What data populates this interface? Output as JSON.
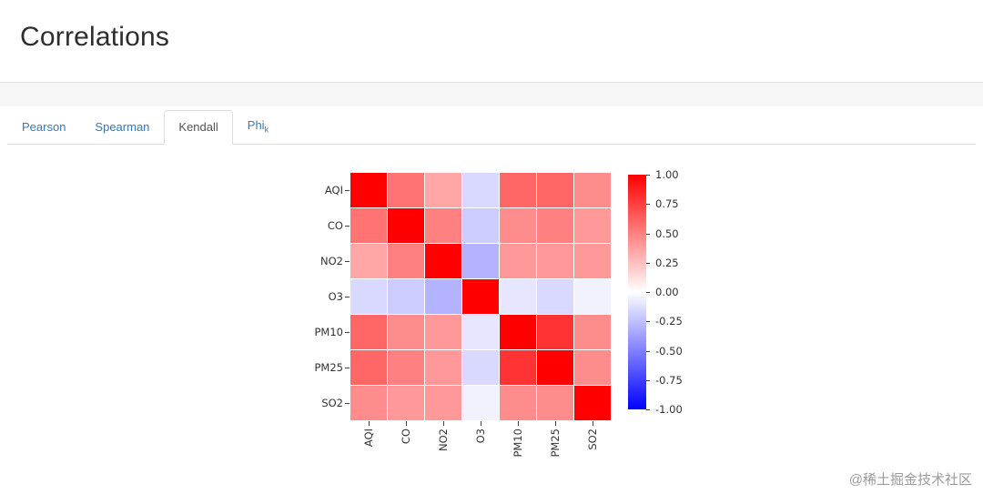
{
  "page": {
    "title": "Correlations",
    "watermark": "@稀土掘金技术社区"
  },
  "tabs": [
    {
      "id": "pearson",
      "label": "Pearson",
      "active": false
    },
    {
      "id": "spearman",
      "label": "Spearman",
      "active": false
    },
    {
      "id": "kendall",
      "label": "Kendall",
      "active": true
    },
    {
      "id": "phik",
      "label": "Phi",
      "sub": "k",
      "active": false
    }
  ],
  "chart_data": {
    "type": "heatmap",
    "categories": [
      "AQI",
      "CO",
      "NO2",
      "O3",
      "PM10",
      "PM25",
      "SO2"
    ],
    "matrix": [
      [
        1.0,
        0.55,
        0.35,
        -0.15,
        0.6,
        0.6,
        0.45
      ],
      [
        0.55,
        1.0,
        0.5,
        -0.2,
        0.45,
        0.5,
        0.4
      ],
      [
        0.35,
        0.5,
        1.0,
        -0.3,
        0.4,
        0.4,
        0.4
      ],
      [
        -0.15,
        -0.2,
        -0.3,
        1.0,
        -0.1,
        -0.15,
        -0.05
      ],
      [
        0.6,
        0.45,
        0.4,
        -0.1,
        1.0,
        0.8,
        0.45
      ],
      [
        0.6,
        0.5,
        0.4,
        -0.15,
        0.8,
        1.0,
        0.45
      ],
      [
        0.45,
        0.4,
        0.4,
        -0.05,
        0.45,
        0.45,
        1.0
      ]
    ],
    "vmin": -1.0,
    "vmax": 1.0,
    "colorbar_ticks": [
      "1.00",
      "0.75",
      "0.50",
      "0.25",
      "0.00",
      "-0.25",
      "-0.50",
      "-0.75",
      "-1.00"
    ],
    "colormap": {
      "positive": "#ff0000",
      "zero": "#ffffff",
      "negative": "#0000ff"
    },
    "grid": true,
    "legend_position": "right-colorbar"
  }
}
